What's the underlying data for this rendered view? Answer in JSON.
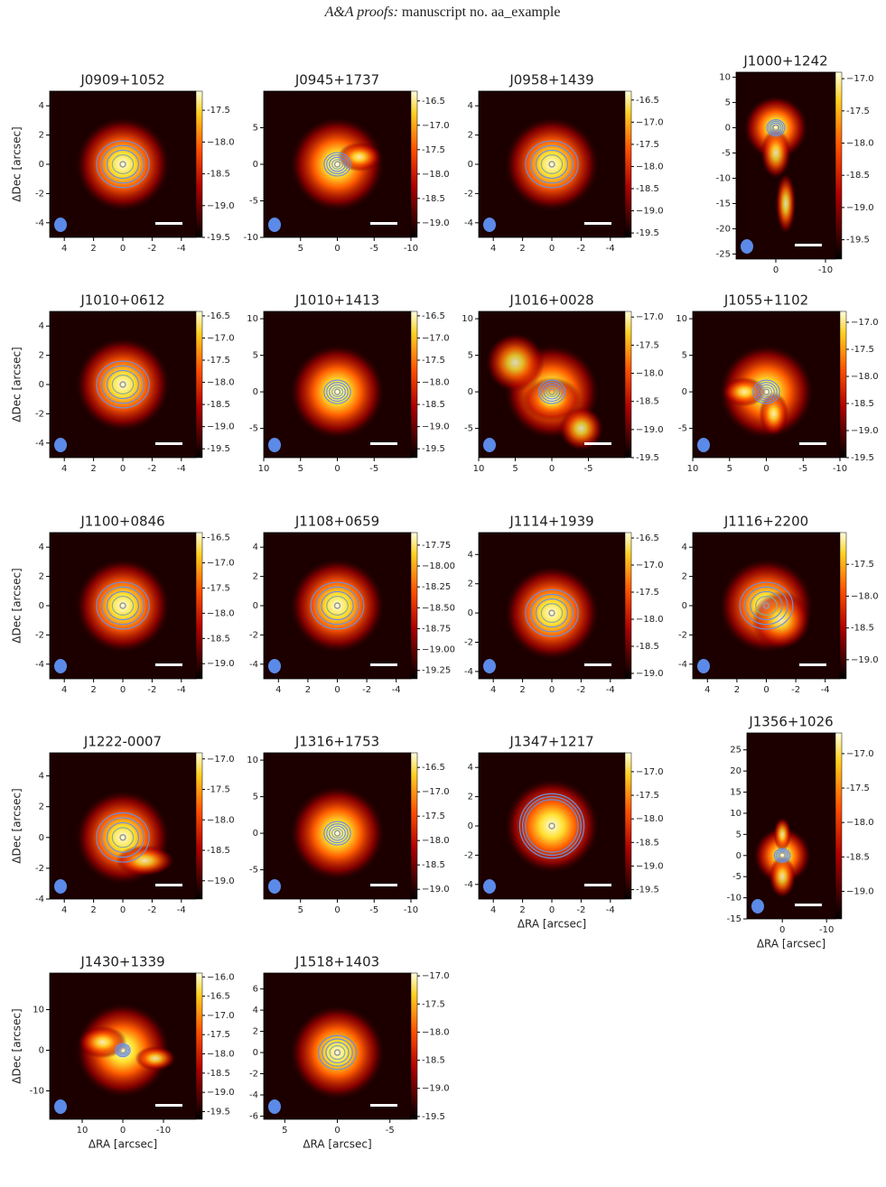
{
  "header": {
    "journal": "A&A proofs:",
    "manuscript": "manuscript no. aa_example"
  },
  "panels": [
    {
      "title": "J0909+1052",
      "ylabel": "ΔDec [arcsec]",
      "xlim": [
        5,
        -5
      ],
      "xticks": [
        4,
        2,
        0,
        -2,
        -4
      ],
      "ylim": [
        -5,
        5
      ],
      "yticks": [
        -4,
        -2,
        0,
        2,
        4
      ],
      "clim": [
        -19.5,
        -17.2
      ],
      "cticks": [
        -17.5,
        {
          "value": -18,
          "label": "−18.0"
        },
        -18.5,
        {
          "value": -19,
          "label": "−19.0"
        },
        -19.5
      ]
    },
    {
      "title": "J0945+1737",
      "xlim": [
        10,
        -10
      ],
      "xticks": [
        5,
        0,
        -5,
        -10
      ],
      "ylim": [
        -10,
        10
      ],
      "yticks": [
        -10,
        -5,
        0,
        5
      ],
      "clim": [
        -19.3,
        -16.3
      ],
      "cticks": [
        -16.5,
        {
          "value": -17,
          "label": "−17.0"
        },
        -17.5,
        {
          "value": -18,
          "label": "−18.0"
        },
        -18.5,
        {
          "value": -19,
          "label": "−19.0"
        }
      ]
    },
    {
      "title": "J0958+1439",
      "xlim": [
        5,
        -5
      ],
      "xticks": [
        4,
        2,
        0,
        -2,
        -4
      ],
      "ylim": [
        -5,
        5
      ],
      "yticks": [
        -4,
        -2,
        0,
        2,
        4
      ],
      "clim": [
        -19.6,
        -16.3
      ],
      "cticks": [
        -16.5,
        {
          "value": -17,
          "label": "−17.0"
        },
        -17.5,
        {
          "value": -18,
          "label": "−18.0"
        },
        -18.5,
        {
          "value": -19,
          "label": "−19.0"
        },
        -19.5
      ]
    },
    {
      "title": "J1000+1242",
      "xlim": [
        8,
        -12
      ],
      "xticks": [
        0,
        -10
      ],
      "ylim": [
        -26,
        11
      ],
      "yticks": [
        -25,
        -20,
        -15,
        -10,
        -5,
        0,
        5,
        10
      ],
      "clim": [
        -19.8,
        -16.9
      ],
      "cticks": [
        {
          "value": -17,
          "label": "−17.0"
        },
        -17.5,
        {
          "value": -18,
          "label": "−18.0"
        },
        -18.5,
        {
          "value": -19,
          "label": "−19.0"
        },
        -19.5
      ]
    },
    {
      "title": "J1010+0612",
      "ylabel": "ΔDec [arcsec]",
      "xlim": [
        5,
        -5
      ],
      "xticks": [
        4,
        2,
        0,
        -2,
        -4
      ],
      "ylim": [
        -5,
        5
      ],
      "yticks": [
        -4,
        -2,
        0,
        2,
        4
      ],
      "clim": [
        -19.7,
        -16.4
      ],
      "cticks": [
        -16.5,
        {
          "value": -17,
          "label": "−17.0"
        },
        -17.5,
        {
          "value": -18,
          "label": "−18.0"
        },
        -18.5,
        {
          "value": -19,
          "label": "−19.0"
        },
        -19.5
      ]
    },
    {
      "title": "J1010+1413",
      "xlim": [
        10,
        -10
      ],
      "xticks": [
        10,
        5,
        0,
        -5
      ],
      "ylim": [
        -9,
        11
      ],
      "yticks": [
        -5,
        0,
        5,
        10
      ],
      "clim": [
        -19.7,
        -16.4
      ],
      "cticks": [
        -16.5,
        {
          "value": -17,
          "label": "−17.0"
        },
        -17.5,
        {
          "value": -18,
          "label": "−18.0"
        },
        -18.5,
        {
          "value": -19,
          "label": "−19.0"
        },
        -19.5
      ]
    },
    {
      "title": "J1016+0028",
      "xlim": [
        10,
        -10
      ],
      "xticks": [
        10,
        5,
        0,
        -5
      ],
      "ylim": [
        -9,
        11
      ],
      "yticks": [
        -5,
        0,
        5,
        10
      ],
      "clim": [
        -19.5,
        -16.9
      ],
      "cticks": [
        {
          "value": -17,
          "label": "−17.0"
        },
        -17.5,
        {
          "value": -18,
          "label": "−18.0"
        },
        -18.5,
        {
          "value": -19,
          "label": "−19.0"
        },
        -19.5
      ]
    },
    {
      "title": "J1055+1102",
      "xlim": [
        10,
        -10
      ],
      "xticks": [
        10,
        5,
        0,
        -5,
        -10
      ],
      "ylim": [
        -9,
        11
      ],
      "yticks": [
        -5,
        0,
        5,
        10
      ],
      "clim": [
        -19.5,
        -16.8
      ],
      "cticks": [
        {
          "value": -17,
          "label": "−17.0"
        },
        -17.5,
        {
          "value": -18,
          "label": "−18.0"
        },
        -18.5,
        {
          "value": -19,
          "label": "−19.0"
        },
        -19.5
      ]
    },
    {
      "title": "J1100+0846",
      "ylabel": "ΔDec [arcsec]",
      "xlim": [
        5,
        -5
      ],
      "xticks": [
        4,
        2,
        0,
        -2,
        -4
      ],
      "ylim": [
        -5,
        5
      ],
      "yticks": [
        -4,
        -2,
        0,
        2,
        4
      ],
      "clim": [
        -19.3,
        -16.4
      ],
      "cticks": [
        -16.5,
        {
          "value": -17,
          "label": "−17.0"
        },
        -17.5,
        {
          "value": -18,
          "label": "−18.0"
        },
        -18.5,
        {
          "value": -19,
          "label": "−19.0"
        }
      ]
    },
    {
      "title": "J1108+0659",
      "xlim": [
        5,
        -5
      ],
      "xticks": [
        4,
        2,
        0,
        -2,
        -4
      ],
      "ylim": [
        -5,
        5
      ],
      "yticks": [
        -4,
        -2,
        0,
        2,
        4
      ],
      "clim": [
        -19.35,
        -17.6
      ],
      "cticks": [
        -17.75,
        {
          "value": -18,
          "label": "−18.00"
        },
        -18.25,
        {
          "value": -18.5,
          "label": "−18.50"
        },
        -18.75,
        {
          "value": -19,
          "label": "−19.00"
        },
        -19.25
      ]
    },
    {
      "title": "J1114+1939",
      "xlim": [
        5,
        -5
      ],
      "xticks": [
        4,
        2,
        0,
        -2,
        -4
      ],
      "ylim": [
        -4.5,
        5.5
      ],
      "yticks": [
        -4,
        -2,
        0,
        2,
        4
      ],
      "clim": [
        -19.1,
        -16.4
      ],
      "cticks": [
        -16.5,
        {
          "value": -17,
          "label": "−17.0"
        },
        -17.5,
        {
          "value": -18,
          "label": "−18.0"
        },
        -18.5,
        {
          "value": -19,
          "label": "−19.0"
        }
      ]
    },
    {
      "title": "J1116+2200",
      "xlim": [
        5,
        -5
      ],
      "xticks": [
        4,
        2,
        0,
        -2,
        -4
      ],
      "ylim": [
        -5,
        5
      ],
      "yticks": [
        -4,
        -2,
        0,
        2,
        4
      ],
      "clim": [
        -19.3,
        -17.0
      ],
      "cticks": [
        -17.5,
        {
          "value": -18,
          "label": "−18.0"
        },
        -18.5,
        {
          "value": -19,
          "label": "−19.0"
        }
      ]
    },
    {
      "title": "J1222-0007",
      "ylabel": "ΔDec [arcsec]",
      "xlim": [
        5,
        -5
      ],
      "xticks": [
        4,
        2,
        0,
        -2,
        -4
      ],
      "ylim": [
        -4,
        5.5
      ],
      "yticks": [
        -4,
        -2,
        0,
        2,
        4
      ],
      "clim": [
        -19.3,
        -16.9
      ],
      "cticks": [
        {
          "value": -17,
          "label": "−17.0"
        },
        -17.5,
        {
          "value": -18,
          "label": "−18.0"
        },
        -18.5,
        {
          "value": -19,
          "label": "−19.0"
        }
      ]
    },
    {
      "title": "J1316+1753",
      "xlim": [
        10,
        -10
      ],
      "xticks": [
        5,
        0,
        -5,
        -10
      ],
      "ylim": [
        -9,
        11
      ],
      "yticks": [
        -5,
        0,
        5,
        10
      ],
      "clim": [
        -19.2,
        -16.2
      ],
      "cticks": [
        -16.5,
        {
          "value": -17,
          "label": "−17.0"
        },
        -17.5,
        {
          "value": -18,
          "label": "−18.0"
        },
        -18.5,
        {
          "value": -19,
          "label": "−19.0"
        }
      ]
    },
    {
      "title": "J1347+1217",
      "xlabel": "ΔRA [arcsec]",
      "xlim": [
        5,
        -5
      ],
      "xticks": [
        4,
        2,
        0,
        -2,
        -4
      ],
      "ylim": [
        -5,
        5
      ],
      "yticks": [
        -4,
        -2,
        0,
        2,
        4
      ],
      "clim": [
        -19.7,
        -16.6
      ],
      "cticks": [
        {
          "value": -17,
          "label": "−17.0"
        },
        -17.5,
        {
          "value": -18,
          "label": "−18.0"
        },
        -18.5,
        {
          "value": -19,
          "label": "−19.0"
        },
        -19.5
      ]
    },
    {
      "title": "J1356+1026",
      "xlabel": "ΔRA [arcsec]",
      "xlim": [
        8,
        -12
      ],
      "xticks": [
        0,
        -10
      ],
      "ylim": [
        -15,
        29
      ],
      "yticks": [
        -15,
        -10,
        -5,
        0,
        5,
        10,
        15,
        20,
        25
      ],
      "clim": [
        -19.4,
        -16.7
      ],
      "cticks": [
        {
          "value": -17,
          "label": "−17.0"
        },
        -17.5,
        {
          "value": -18,
          "label": "−18.0"
        },
        -18.5,
        {
          "value": -19,
          "label": "−19.0"
        }
      ]
    },
    {
      "title": "J1430+1339",
      "xlabel": "ΔRA [arcsec]",
      "ylabel": "ΔDec [arcsec]",
      "xlim": [
        18,
        -18
      ],
      "xticks": [
        10,
        0,
        -10
      ],
      "ylim": [
        -17,
        19
      ],
      "yticks": [
        -10,
        0,
        10
      ],
      "clim": [
        -19.7,
        -15.9
      ],
      "cticks": [
        {
          "value": -16,
          "label": "−16.0"
        },
        -16.5,
        {
          "value": -17,
          "label": "−17.0"
        },
        -17.5,
        {
          "value": -18,
          "label": "−18.0"
        },
        -18.5,
        {
          "value": -19,
          "label": "−19.0"
        },
        -19.5
      ]
    },
    {
      "title": "J1518+1403",
      "xlabel": "ΔRA [arcsec]",
      "xlim": [
        7,
        -7
      ],
      "xticks": [
        5,
        0,
        -5
      ],
      "ylim": [
        -6.3,
        7.5
      ],
      "yticks": [
        -6,
        -4,
        -2,
        0,
        2,
        4,
        6
      ],
      "clim": [
        -19.55,
        -16.95
      ],
      "cticks": [
        {
          "value": -17,
          "label": "−17.0"
        },
        -17.5,
        {
          "value": -18,
          "label": "−18.0"
        },
        -18.5,
        {
          "value": -19,
          "label": "−19.0"
        },
        -19.5
      ]
    }
  ]
}
